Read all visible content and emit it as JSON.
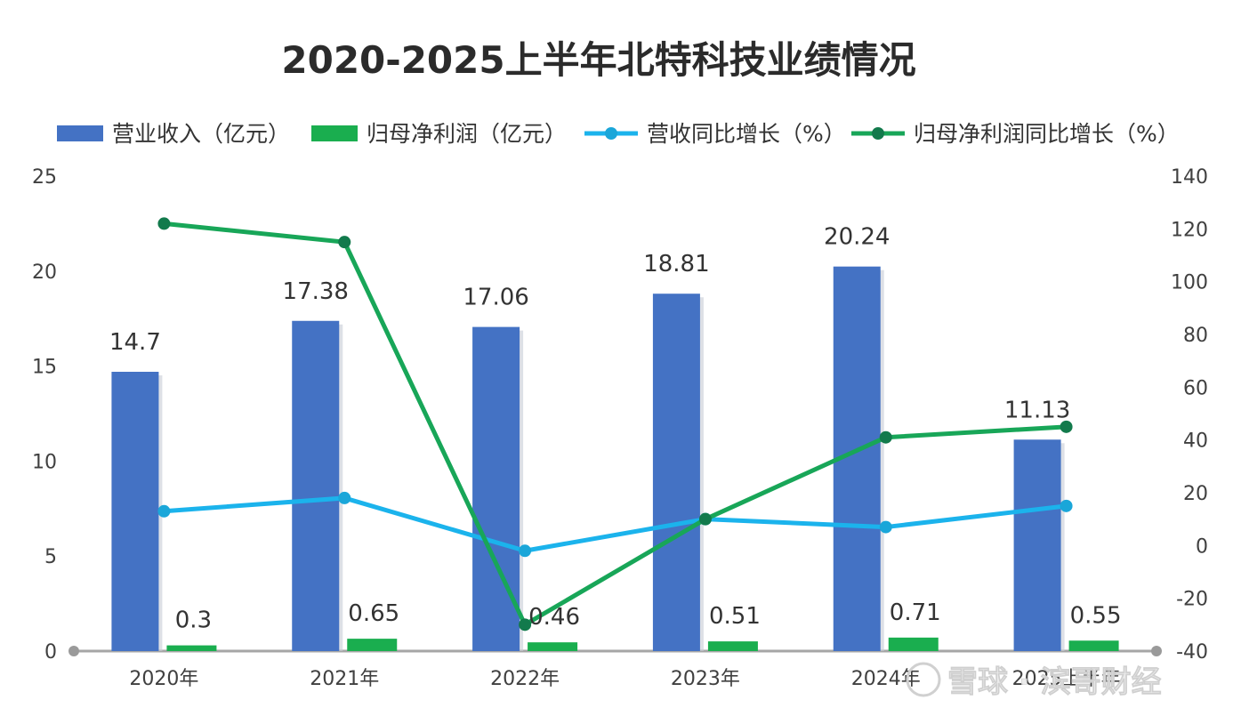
{
  "chart_data": {
    "type": "bar+line",
    "title": "2020-2025上半年北特科技业绩情况",
    "categories": [
      "2020年",
      "2021年",
      "2022年",
      "2023年",
      "2024年",
      "2025上半年"
    ],
    "bar_series": [
      {
        "name": "营业收入（亿元）",
        "values": [
          14.7,
          17.38,
          17.06,
          18.81,
          20.24,
          11.13
        ],
        "color": "#4472C4",
        "axis": "left"
      },
      {
        "name": "归母净利润（亿元）",
        "values": [
          0.3,
          0.65,
          0.46,
          0.51,
          0.71,
          0.55
        ],
        "color": "#1AAE4F",
        "axis": "left"
      }
    ],
    "line_series": [
      {
        "name": "营收同比增长（%）",
        "values": [
          13,
          18,
          -2,
          10,
          7,
          15
        ],
        "color": "#1BB3EC",
        "axis": "right"
      },
      {
        "name": "归母净利润同比增长（%）",
        "values": [
          122,
          115,
          -30,
          10,
          41,
          45
        ],
        "color": "#18A658",
        "axis": "right"
      }
    ],
    "left_axis": {
      "ylim": [
        0,
        25
      ],
      "ticks": [
        "0",
        "5",
        "10",
        "15",
        "20",
        "25"
      ]
    },
    "right_axis": {
      "ylim": [
        -40,
        140
      ],
      "ticks": [
        "-40",
        "-20",
        "0",
        "20",
        "40",
        "60",
        "80",
        "100",
        "120",
        "140"
      ]
    },
    "legend_position": "top",
    "grid": false
  },
  "watermark": "雪球 · 滨哥财经"
}
